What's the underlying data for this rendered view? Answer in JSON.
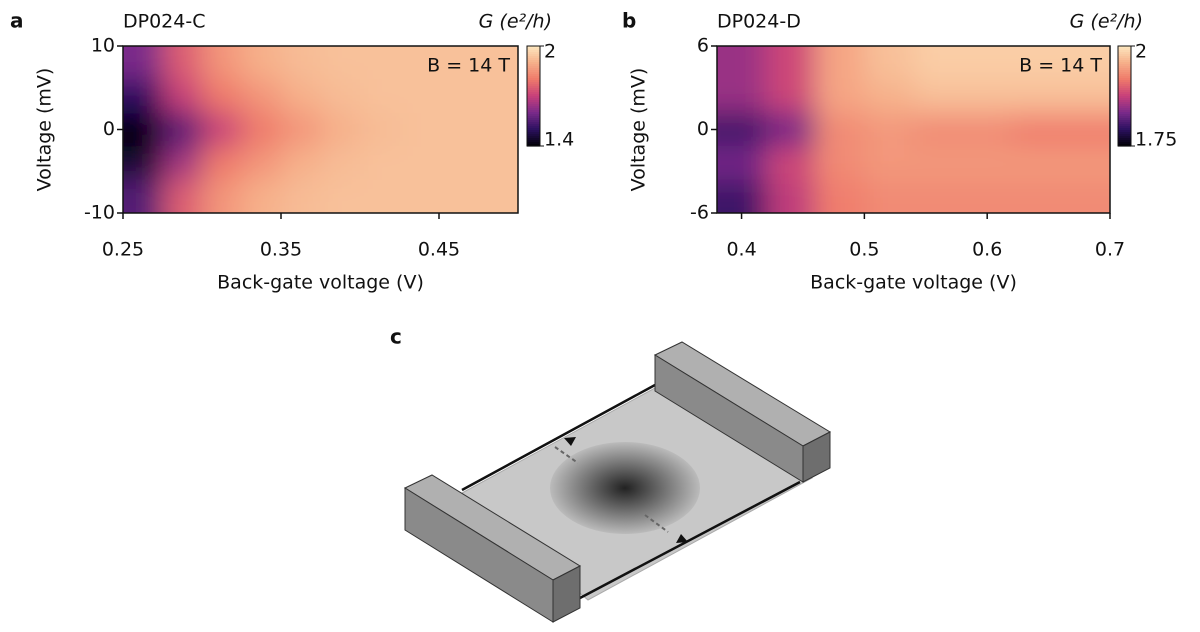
{
  "panels": [
    "a",
    "b",
    "c"
  ],
  "chart_data": [
    {
      "type": "heatmap",
      "title": "DP024-C",
      "annotation": "B = 14 T",
      "x_label": "Back-gate voltage (V)",
      "y_label": "Voltage (mV)",
      "colorbar_label": "G (e²/h)",
      "x": [
        0.2625,
        0.2875,
        0.3125,
        0.3375,
        0.3625,
        0.3875,
        0.4125,
        0.4375,
        0.4625,
        0.4875
      ],
      "y": [
        8,
        4,
        0,
        -4,
        -8
      ],
      "z": [
        [
          1.6,
          1.75,
          1.85,
          1.9,
          1.92,
          1.93,
          1.93,
          1.93,
          1.93,
          1.93
        ],
        [
          1.5,
          1.7,
          1.8,
          1.85,
          1.9,
          1.92,
          1.93,
          1.93,
          1.93,
          1.93
        ],
        [
          1.4,
          1.55,
          1.7,
          1.8,
          1.85,
          1.9,
          1.92,
          1.93,
          1.93,
          1.93
        ],
        [
          1.45,
          1.65,
          1.8,
          1.85,
          1.9,
          1.92,
          1.93,
          1.93,
          1.93,
          1.93
        ],
        [
          1.55,
          1.75,
          1.85,
          1.9,
          1.92,
          1.93,
          1.93,
          1.93,
          1.93,
          1.93
        ]
      ],
      "xlim": [
        0.25,
        0.5
      ],
      "ylim": [
        -10,
        10
      ],
      "zlim": [
        1.4,
        2
      ],
      "xticks": [
        0.25,
        0.35,
        0.45
      ],
      "yticks": [
        10,
        0,
        -10
      ],
      "zticks": [
        2,
        1.4
      ],
      "colormap": [
        "#000004",
        "#2c1160",
        "#7a2a8a",
        "#c8407a",
        "#ef7a6a",
        "#f6b08a",
        "#fde8c0"
      ]
    },
    {
      "type": "heatmap",
      "title": "DP024-D",
      "annotation": "B = 14 T",
      "x_label": "Back-gate voltage (V)",
      "y_label": "Voltage (mV)",
      "colorbar_label": "G (e²/h)",
      "x": [
        0.4,
        0.44,
        0.48,
        0.52,
        0.56,
        0.6,
        0.64,
        0.68
      ],
      "y": [
        4.8,
        2.4,
        0,
        -2.4,
        -4.8
      ],
      "z": [
        [
          1.85,
          1.88,
          1.95,
          1.97,
          1.98,
          1.98,
          1.98,
          1.98
        ],
        [
          1.85,
          1.88,
          1.95,
          1.96,
          1.97,
          1.97,
          1.97,
          1.97
        ],
        [
          1.8,
          1.83,
          1.93,
          1.94,
          1.93,
          1.93,
          1.92,
          1.92
        ],
        [
          1.83,
          1.88,
          1.93,
          1.94,
          1.94,
          1.94,
          1.94,
          1.94
        ],
        [
          1.8,
          1.87,
          1.92,
          1.93,
          1.93,
          1.93,
          1.93,
          1.93
        ]
      ],
      "xlim": [
        0.38,
        0.7
      ],
      "ylim": [
        -6,
        6
      ],
      "zlim": [
        1.75,
        2
      ],
      "xticks": [
        0.4,
        0.5,
        0.6,
        0.7
      ],
      "yticks": [
        6,
        0,
        -6
      ],
      "zticks": [
        2,
        1.75
      ],
      "colormap": [
        "#000004",
        "#2c1160",
        "#7a2a8a",
        "#c8407a",
        "#ef7a6a",
        "#f6b08a",
        "#fde8c0"
      ]
    }
  ]
}
